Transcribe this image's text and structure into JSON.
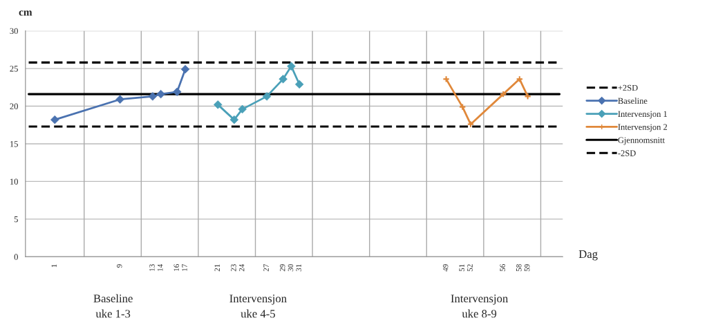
{
  "chart_data": {
    "type": "line",
    "ylabel": "cm",
    "xlabel": "Dag",
    "xlim": [
      -2.6,
      63.3
    ],
    "ylim": [
      0,
      30
    ],
    "yticks": [
      0,
      5,
      10,
      15,
      20,
      25,
      30
    ],
    "xticks": [
      1,
      9,
      13,
      14,
      16,
      17,
      21,
      23,
      24,
      27,
      29,
      30,
      31,
      49,
      51,
      52,
      56,
      58,
      59,
      {
        "value": 4.6,
        "label": null
      },
      {
        "value": 11.6,
        "label": null
      },
      {
        "value": 18.6,
        "label": null
      },
      {
        "value": 25.6,
        "label": null
      },
      {
        "value": 32.6,
        "label": null
      },
      {
        "value": 39.6,
        "label": null
      },
      {
        "value": 46.6,
        "label": null
      },
      {
        "value": 53.6,
        "label": null
      },
      {
        "value": 60.6,
        "label": null
      }
    ],
    "grid": true,
    "legend": "right",
    "series": [
      {
        "name": "+2SD",
        "color": "#000000",
        "line_style": "dashed",
        "marker": "none",
        "x": [
          -2.2,
          62.9
        ],
        "values": [
          25.8,
          25.8
        ]
      },
      {
        "name": "Baseline",
        "color": "#4a72b0",
        "marker": "diamond",
        "x": [
          1,
          9,
          13,
          14,
          16,
          17
        ],
        "values": [
          18.2,
          20.9,
          21.3,
          21.6,
          21.9,
          24.9
        ]
      },
      {
        "name": "Intervensjon 1",
        "color": "#4aa0b8",
        "marker": "diamond",
        "x": [
          21,
          23,
          24,
          27,
          29,
          30,
          31
        ],
        "values": [
          20.2,
          18.2,
          19.6,
          21.3,
          23.6,
          25.3,
          22.9
        ]
      },
      {
        "name": "Intervensjon 2",
        "color": "#e0883a",
        "marker": "cross",
        "x": [
          49,
          51,
          52,
          56,
          58,
          59
        ],
        "values": [
          23.6,
          19.9,
          17.6,
          21.6,
          23.6,
          21.3
        ]
      },
      {
        "name": "Gjennomsnitt",
        "color": "#000000",
        "line_style": "solid",
        "marker": "none",
        "x": [
          -2.2,
          62.9
        ],
        "values": [
          21.6,
          21.6
        ]
      },
      {
        "name": "-2SD",
        "color": "#000000",
        "line_style": "dashed",
        "marker": "none",
        "x": [
          -2.2,
          62.9
        ],
        "values": [
          17.3,
          17.3
        ]
      }
    ],
    "annotations": [
      "Baseline\nuke 1-3",
      "Intervensjon\nuke 4-5",
      "Intervensjon\nuke 8-9"
    ]
  }
}
